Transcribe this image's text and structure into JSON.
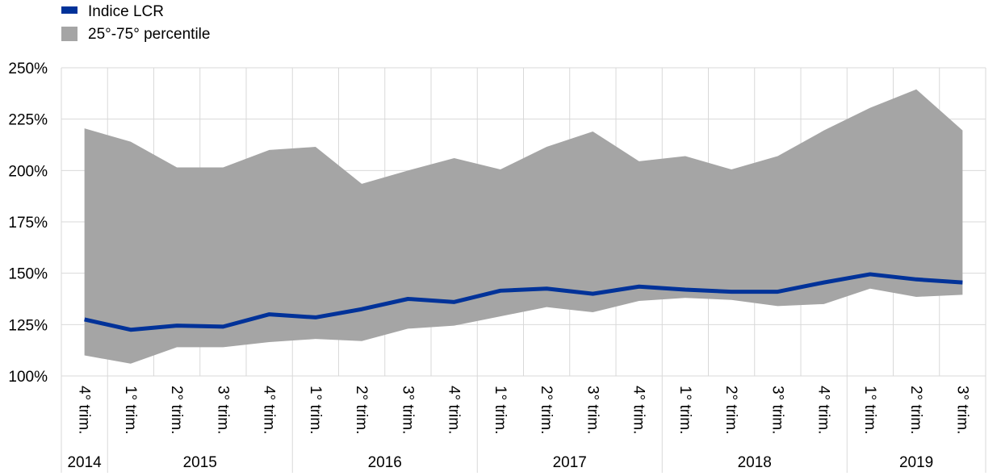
{
  "chart_data": {
    "type": "area",
    "title": "",
    "xlabel": "",
    "ylabel": "",
    "ylim": [
      100,
      250
    ],
    "y_ticks": [
      "100%",
      "125%",
      "150%",
      "175%",
      "200%",
      "225%",
      "250%"
    ],
    "y_tick_values": [
      100,
      125,
      150,
      175,
      200,
      225,
      250
    ],
    "grid": true,
    "legend": "top-left",
    "categories": [
      "4° trim.",
      "1° trim.",
      "2° trim.",
      "3° trim.",
      "4° trim.",
      "1° trim.",
      "2° trim.",
      "3° trim.",
      "4° trim.",
      "1° trim.",
      "2° trim.",
      "3° trim.",
      "4° trim.",
      "1° trim.",
      "2° trim.",
      "3° trim.",
      "4° trim.",
      "1° trim.",
      "2° trim.",
      "3° trim."
    ],
    "years": [
      {
        "label": "2014",
        "start": 0,
        "count": 1
      },
      {
        "label": "2015",
        "start": 1,
        "count": 4
      },
      {
        "label": "2016",
        "start": 5,
        "count": 4
      },
      {
        "label": "2017",
        "start": 9,
        "count": 4
      },
      {
        "label": "2018",
        "start": 13,
        "count": 4
      },
      {
        "label": "2019",
        "start": 17,
        "count": 3
      }
    ],
    "series": [
      {
        "name": "Indice LCR",
        "type": "line",
        "color": "#003299",
        "values": [
          127.5,
          122.5,
          124.5,
          124,
          130,
          128.5,
          132.5,
          137.5,
          136,
          141.5,
          142.5,
          140,
          143.5,
          142,
          141,
          141,
          145.5,
          149.5,
          147,
          145.5
        ]
      },
      {
        "name": "25°-75° percentile",
        "type": "band",
        "color": "#a5a5a5",
        "lower": [
          110,
          106,
          114,
          114,
          116.5,
          118,
          117,
          123,
          124.5,
          129,
          133.5,
          131,
          136.5,
          138,
          137,
          134,
          135,
          142.5,
          138.5,
          139.5
        ],
        "upper": [
          220.5,
          214,
          201.5,
          201.5,
          210,
          211.5,
          193.5,
          200,
          206,
          200.5,
          211.5,
          219,
          204.5,
          207,
          200.5,
          207,
          219.5,
          230.5,
          239.5,
          219.5
        ]
      }
    ]
  }
}
